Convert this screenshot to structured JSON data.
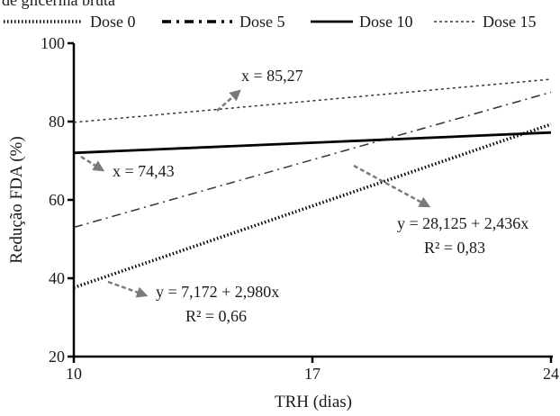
{
  "header_partial_text": "de glicerina bruta",
  "chart_data": {
    "type": "line",
    "title": "",
    "xlabel": "TRH (dias)",
    "ylabel": "Redução FDA (%)",
    "xlim": [
      10,
      24
    ],
    "ylim": [
      20,
      100
    ],
    "x_ticks": [
      "10",
      "17",
      "24"
    ],
    "y_ticks": [
      "20",
      "40",
      "60",
      "80",
      "100"
    ],
    "grid": false,
    "legend_position": "top",
    "series": [
      {
        "name": "Dose 0",
        "style": "dotted-thick",
        "color": "#000000",
        "x": [
          10,
          24
        ],
        "y": [
          37.6,
          79.3
        ]
      },
      {
        "name": "Dose 5",
        "style": "dash-dot",
        "color": "#333333",
        "x": [
          10,
          24
        ],
        "y": [
          53.0,
          87.5
        ]
      },
      {
        "name": "Dose 10",
        "style": "solid",
        "color": "#000000",
        "x": [
          10,
          24
        ],
        "y": [
          72.0,
          77.2
        ]
      },
      {
        "name": "Dose 15",
        "style": "dotted-thin",
        "color": "#333333",
        "x": [
          10,
          24
        ],
        "y": [
          79.8,
          90.8
        ]
      }
    ],
    "annotations": [
      {
        "id": "dose15",
        "lines": [
          "x = 85,27"
        ]
      },
      {
        "id": "dose10",
        "lines": [
          "x = 74,43"
        ]
      },
      {
        "id": "dose5",
        "lines": [
          "y = 28,125 + 2,436x",
          "R² = 0,83"
        ]
      },
      {
        "id": "dose0",
        "lines": [
          "y = 7,172 + 2,980x",
          "R² = 0,66"
        ]
      }
    ]
  }
}
